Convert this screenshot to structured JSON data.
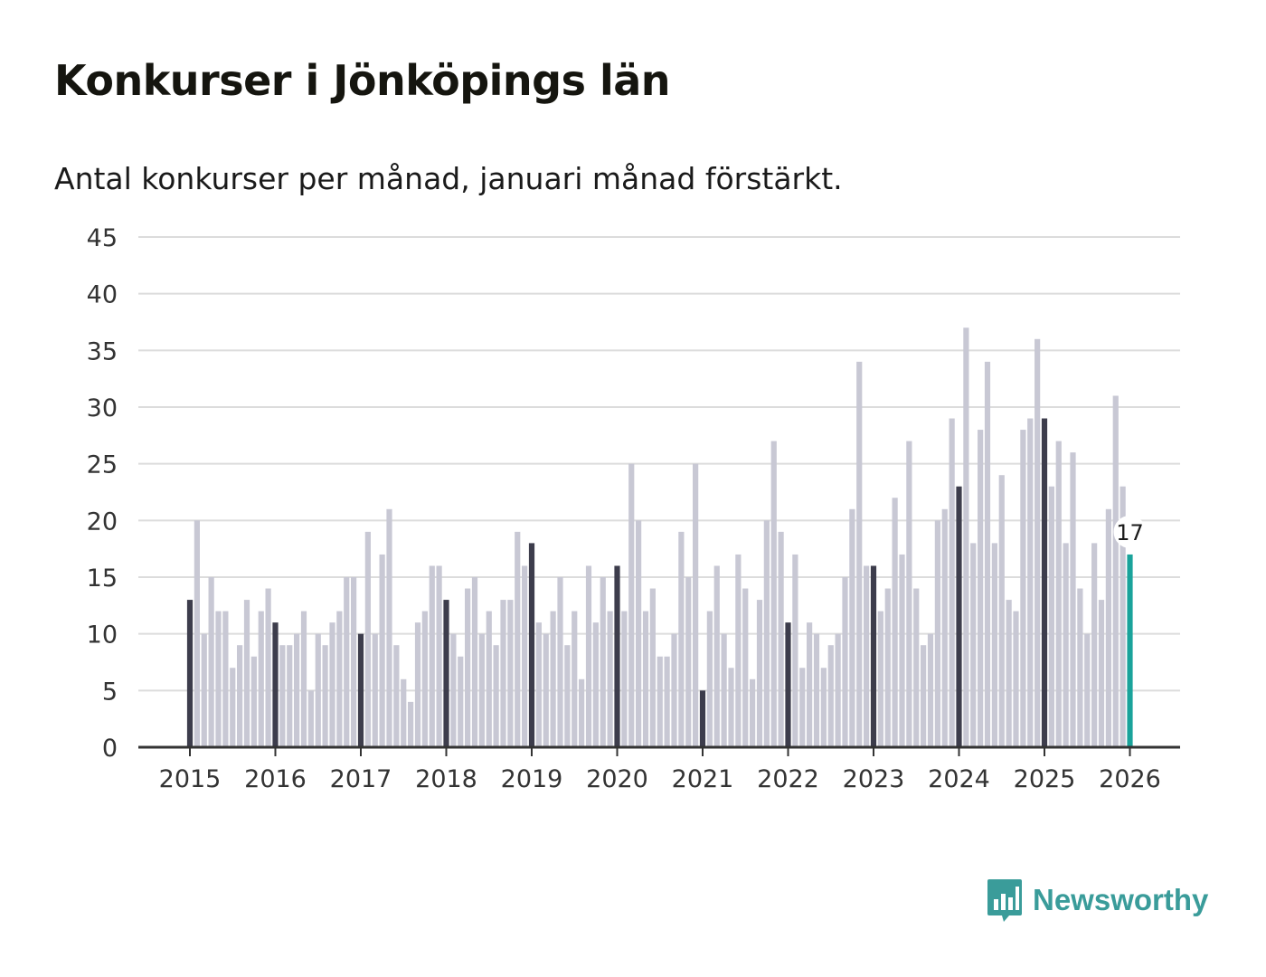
{
  "chart_data": {
    "type": "bar",
    "title": "Konkurser i Jönköpings län",
    "subtitle": "Antal konkurser per månad, januari månad förstärkt.",
    "xlabel": "",
    "ylabel": "",
    "ylim": [
      0,
      45
    ],
    "yticks": [
      0,
      5,
      10,
      15,
      20,
      25,
      30,
      35,
      40,
      45
    ],
    "xticks": [
      "2015",
      "2016",
      "2017",
      "2018",
      "2019",
      "2020",
      "2021",
      "2022",
      "2023",
      "2024",
      "2025",
      "2026"
    ],
    "grid": true,
    "start": "2015-01",
    "values": [
      13,
      20,
      10,
      15,
      12,
      12,
      7,
      9,
      13,
      8,
      12,
      14,
      11,
      9,
      9,
      10,
      12,
      5,
      10,
      9,
      11,
      12,
      15,
      15,
      10,
      19,
      10,
      17,
      21,
      9,
      6,
      4,
      11,
      12,
      16,
      16,
      13,
      10,
      8,
      14,
      15,
      10,
      12,
      9,
      13,
      13,
      19,
      16,
      18,
      11,
      10,
      12,
      15,
      9,
      12,
      6,
      16,
      11,
      15,
      12,
      16,
      12,
      25,
      20,
      12,
      14,
      8,
      8,
      10,
      19,
      15,
      25,
      5,
      12,
      16,
      10,
      7,
      17,
      14,
      6,
      13,
      20,
      27,
      19,
      11,
      17,
      7,
      11,
      10,
      7,
      9,
      10,
      15,
      21,
      34,
      16,
      16,
      12,
      14,
      22,
      17,
      27,
      14,
      9,
      10,
      20,
      21,
      29,
      23,
      37,
      18,
      28,
      34,
      18,
      24,
      13,
      12,
      28,
      29,
      36,
      29,
      23,
      27,
      18,
      26,
      14,
      10,
      18,
      13,
      21,
      31,
      23,
      17
    ],
    "highlight_label": "17",
    "colors": {
      "bar": "#c8c8d4",
      "january": "#3d3d4c",
      "latest": "#1aa39b",
      "grid": "#dcdcdc",
      "axis": "#333333"
    }
  },
  "brand": {
    "name": "Newsworthy",
    "icon": "newsworthy-logo-icon",
    "color": "#3a9c9a"
  }
}
